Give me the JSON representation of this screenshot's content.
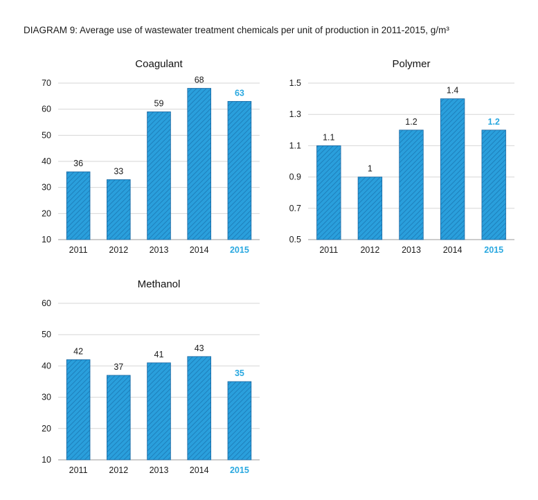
{
  "page": {
    "title": "DIAGRAM 9: Average use of wastewater treatment chemicals per unit of production in 2011-2015, g/m³"
  },
  "colors": {
    "bar_fill": "#2a9fdc",
    "bar_hatch": "#1a78b4",
    "bar_outline": "#1765a0",
    "highlight_text": "#29a8e0",
    "grid": "#d6d6d6",
    "axis": "#9a9a9a"
  },
  "chart_data": [
    {
      "type": "bar",
      "title": "Coagulant",
      "categories": [
        "2011",
        "2012",
        "2013",
        "2014",
        "2015"
      ],
      "values": [
        36,
        33,
        59,
        68,
        63
      ],
      "data_labels": [
        "36",
        "33",
        "59",
        "68",
        "63"
      ],
      "yticks": [
        "10",
        "20",
        "30",
        "40",
        "50",
        "60",
        "70"
      ],
      "ylim": [
        10,
        70
      ],
      "highlight_category": "2015",
      "grid": true
    },
    {
      "type": "bar",
      "title": "Polymer",
      "categories": [
        "2011",
        "2012",
        "2013",
        "2014",
        "2015"
      ],
      "values": [
        1.1,
        0.9,
        1.2,
        1.4,
        1.2
      ],
      "data_labels": [
        "1.1",
        "1",
        "1.2",
        "1.4",
        "1.2"
      ],
      "yticks": [
        "0.5",
        "0.7",
        "0.9",
        "1.1",
        "1.3",
        "1.5"
      ],
      "ylim": [
        0.5,
        1.5
      ],
      "highlight_category": "2015",
      "grid": true
    },
    {
      "type": "bar",
      "title": "Methanol",
      "categories": [
        "2011",
        "2012",
        "2013",
        "2014",
        "2015"
      ],
      "values": [
        42,
        37,
        41,
        43,
        35
      ],
      "data_labels": [
        "42",
        "37",
        "41",
        "43",
        "35"
      ],
      "yticks": [
        "10",
        "20",
        "30",
        "40",
        "50",
        "60"
      ],
      "ylim": [
        10,
        60
      ],
      "highlight_category": "2015",
      "grid": true
    }
  ]
}
